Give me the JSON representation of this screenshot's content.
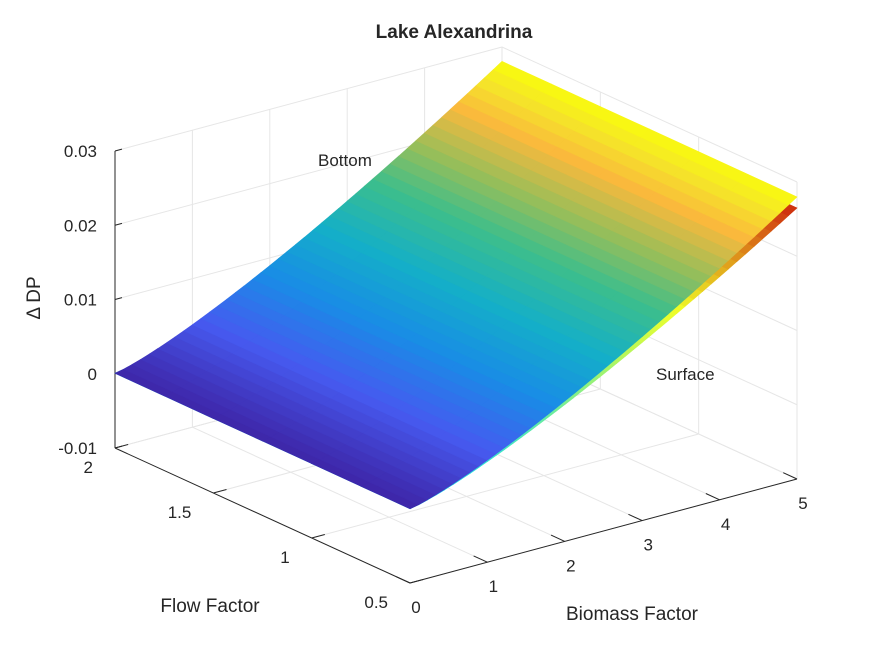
{
  "chart_data": {
    "type": "surface",
    "title": "Lake Alexandrina",
    "xlabel": "Biomass Factor",
    "ylabel": "Flow Factor",
    "zlabel": "Δ DP",
    "xlim": [
      0,
      5
    ],
    "ylim": [
      0.5,
      2
    ],
    "zlim": [
      -0.01,
      0.03
    ],
    "x_ticks": [
      "0",
      "1",
      "2",
      "3",
      "4",
      "5"
    ],
    "y_ticks": [
      "0.5",
      "1",
      "1.5",
      "2"
    ],
    "z_ticks": [
      "-0.01",
      "0",
      "0.01",
      "0.02",
      "0.03"
    ],
    "grid": true,
    "colormap": "parula",
    "surfaces": [
      {
        "label": "Bottom",
        "z_at_biomass_0": 0.0,
        "z_at_biomass_5": 0.028,
        "z_slope_per_flow": 4e-05
      },
      {
        "label": "Surface",
        "z_at_biomass_0": 0.0,
        "z_at_biomass_5": 0.0265,
        "z_slope_per_flow": 4e-05
      }
    ]
  }
}
